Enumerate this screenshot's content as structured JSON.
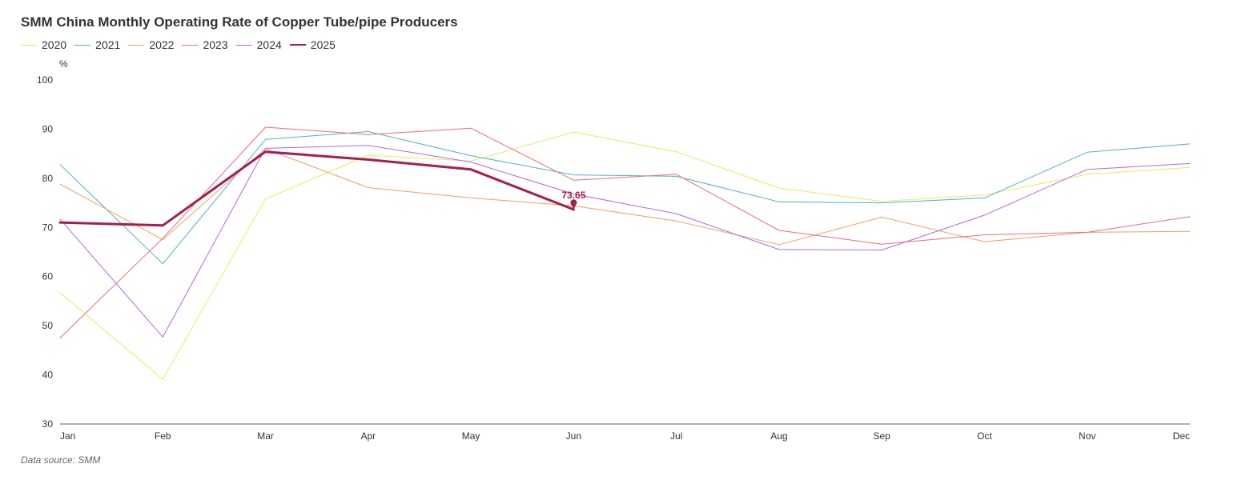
{
  "chart_data": {
    "type": "line",
    "title": "SMM China Monthly Operating Rate of Copper Tube/pipe Producers",
    "ylabel": "%",
    "xlabel": "",
    "ylim": [
      30,
      100
    ],
    "yticks": [
      30,
      40,
      50,
      60,
      70,
      80,
      90,
      100
    ],
    "categories": [
      "Jan",
      "Feb",
      "Mar",
      "Apr",
      "May",
      "Jun",
      "Jul",
      "Aug",
      "Sep",
      "Oct",
      "Nov",
      "Dec"
    ],
    "grid": false,
    "legend_position": "top-left",
    "series": [
      {
        "name": "2020",
        "color": "#e6ec5a",
        "width": 1,
        "values": [
          56.7,
          39.1,
          75.8,
          84.7,
          83.5,
          89.4,
          85.4,
          78.0,
          75.3,
          76.6,
          80.8,
          82.2
        ]
      },
      {
        "name": "2021",
        "color": "#4ab3c6",
        "width": 1,
        "values": [
          82.8,
          62.6,
          87.9,
          89.5,
          84.6,
          80.7,
          80.4,
          75.2,
          75.0,
          76.0,
          85.3,
          87.0
        ]
      },
      {
        "name": "2022",
        "color": "#f0a060",
        "width": 1,
        "values": [
          78.8,
          67.5,
          86.0,
          78.1,
          76.0,
          74.4,
          71.3,
          66.5,
          72.1,
          67.1,
          69.0,
          69.2
        ]
      },
      {
        "name": "2023",
        "color": "#f06b75",
        "width": 1,
        "values": [
          47.5,
          67.8,
          90.4,
          88.9,
          90.2,
          79.6,
          80.8,
          69.4,
          66.6,
          68.5,
          69.0,
          72.2
        ]
      },
      {
        "name": "2024",
        "color": "#b466e8",
        "width": 1,
        "values": [
          71.7,
          47.7,
          86.1,
          86.7,
          83.3,
          76.8,
          72.8,
          65.5,
          65.4,
          72.5,
          81.8,
          83.0
        ]
      },
      {
        "name": "2025",
        "color": "#a71d4e",
        "width": 3,
        "values": [
          71.0,
          70.4,
          85.4,
          83.8,
          81.8,
          73.65,
          null,
          null,
          null,
          null,
          null,
          null
        ]
      }
    ],
    "annotations": [
      {
        "series": "2025",
        "category": "Jun",
        "label": "73.65"
      }
    ],
    "source": "Data source:  SMM"
  }
}
